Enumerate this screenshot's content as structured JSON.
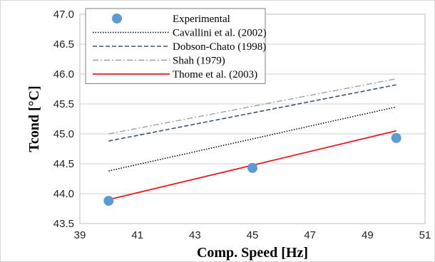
{
  "chart_data": {
    "type": "line",
    "xlabel": "Comp. Speed [Hz]",
    "ylabel": "Tcond [°C]",
    "xlim": [
      39,
      51
    ],
    "ylim": [
      43.5,
      47.0
    ],
    "x_ticks": [
      39,
      41,
      43,
      45,
      47,
      49,
      51
    ],
    "y_ticks": [
      43.5,
      44.0,
      44.5,
      45.0,
      45.5,
      46.0,
      46.5,
      47.0
    ],
    "x_tick_labels": [
      "39",
      "41",
      "43",
      "45",
      "47",
      "49",
      "51"
    ],
    "y_tick_labels": [
      "43.5",
      "44.0",
      "44.5",
      "45.0",
      "45.5",
      "46.0",
      "46.5",
      "47.0"
    ],
    "grid": "horizontal",
    "legend_position": "top-left",
    "series": [
      {
        "name": "Experimental",
        "kind": "scatter",
        "color": "#5b9bd5",
        "x": [
          40,
          45,
          50
        ],
        "y": [
          43.88,
          44.43,
          44.93
        ]
      },
      {
        "name": "Cavallini et al. (2002)",
        "kind": "line",
        "style": "dotted",
        "color": "#000000",
        "x": [
          40,
          50
        ],
        "y": [
          44.38,
          45.45
        ]
      },
      {
        "name": "Dobson-Chato (1998)",
        "kind": "line",
        "style": "dashed",
        "color": "#3e5475",
        "x": [
          40,
          50
        ],
        "y": [
          44.88,
          45.82
        ]
      },
      {
        "name": "Shah (1979)",
        "kind": "line",
        "style": "dashdot",
        "color": "#a0a0a0",
        "x": [
          40,
          50
        ],
        "y": [
          45.0,
          45.92
        ]
      },
      {
        "name": "Thome et al. (2003)",
        "kind": "line",
        "style": "solid",
        "color": "#e8191f",
        "x": [
          40,
          50
        ],
        "y": [
          43.9,
          45.05
        ]
      }
    ]
  }
}
